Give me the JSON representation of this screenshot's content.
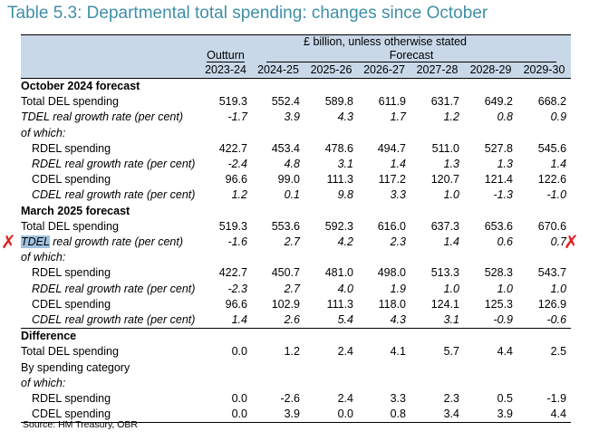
{
  "title": "Table 5.3: Departmental total spending: changes since October",
  "header": {
    "unit": "£ billion, unless otherwise stated",
    "outturn": "Outturn",
    "forecast": "Forecast",
    "years": [
      "2023-24",
      "2024-25",
      "2025-26",
      "2026-27",
      "2027-28",
      "2028-29",
      "2029-30"
    ]
  },
  "rows": [
    {
      "label": "October 2024 forecast",
      "style": "section",
      "values": []
    },
    {
      "label": "Total DEL spending",
      "style": "plain",
      "values": [
        "519.3",
        "552.4",
        "589.8",
        "611.9",
        "631.7",
        "649.2",
        "668.2"
      ]
    },
    {
      "label": "TDEL real growth rate (per cent)",
      "style": "italic",
      "values": [
        "-1.7",
        "3.9",
        "4.3",
        "1.7",
        "1.2",
        "0.8",
        "0.9"
      ]
    },
    {
      "label": "of which:",
      "style": "italic",
      "values": []
    },
    {
      "label": "RDEL spending",
      "style": "sub",
      "values": [
        "422.7",
        "453.4",
        "478.6",
        "494.7",
        "511.0",
        "527.8",
        "545.6"
      ]
    },
    {
      "label": "RDEL real growth rate (per cent)",
      "style": "subitalic",
      "values": [
        "-2.4",
        "4.8",
        "3.1",
        "1.4",
        "1.3",
        "1.3",
        "1.4"
      ]
    },
    {
      "label": "CDEL spending",
      "style": "sub",
      "values": [
        "96.6",
        "99.0",
        "111.3",
        "117.2",
        "120.7",
        "121.4",
        "122.6"
      ]
    },
    {
      "label": "CDEL real growth rate (per cent)",
      "style": "subitalic",
      "values": [
        "1.2",
        "0.1",
        "9.8",
        "3.3",
        "1.0",
        "-1.3",
        "-1.0"
      ]
    },
    {
      "label": "March 2025 forecast",
      "style": "section",
      "values": []
    },
    {
      "label": "Total DEL spending",
      "style": "plain",
      "values": [
        "519.3",
        "553.6",
        "592.3",
        "616.0",
        "637.3",
        "653.6",
        "670.6"
      ]
    },
    {
      "label_highlight": "TDEL",
      "label": " real growth rate (per cent)",
      "style": "italic",
      "values": [
        "-1.6",
        "2.7",
        "4.2",
        "2.3",
        "1.4",
        "0.6",
        "0.7"
      ]
    },
    {
      "label": "of which:",
      "style": "italic",
      "values": []
    },
    {
      "label": "RDEL spending",
      "style": "sub",
      "values": [
        "422.7",
        "450.7",
        "481.0",
        "498.0",
        "513.3",
        "528.3",
        "543.7"
      ]
    },
    {
      "label": "RDEL real growth rate (per cent)",
      "style": "subitalic",
      "values": [
        "-2.3",
        "2.7",
        "4.0",
        "1.9",
        "1.0",
        "1.0",
        "1.0"
      ]
    },
    {
      "label": "CDEL spending",
      "style": "sub",
      "values": [
        "96.6",
        "102.9",
        "111.3",
        "118.0",
        "124.1",
        "125.3",
        "126.9"
      ]
    },
    {
      "label": "CDEL real growth rate (per cent)",
      "style": "subitalic",
      "values": [
        "1.4",
        "2.6",
        "5.4",
        "4.3",
        "3.1",
        "-0.9",
        "-0.6"
      ]
    },
    {
      "label": "Difference",
      "style": "section",
      "values": []
    },
    {
      "label": "Total DEL spending",
      "style": "plain",
      "values": [
        "0.0",
        "1.2",
        "2.4",
        "4.1",
        "5.7",
        "4.4",
        "2.5"
      ]
    },
    {
      "label": "By spending category",
      "style": "plain",
      "values": []
    },
    {
      "label": "of which:",
      "style": "italic",
      "values": []
    },
    {
      "label": "RDEL spending",
      "style": "sub",
      "values": [
        "0.0",
        "-2.6",
        "2.4",
        "3.3",
        "2.3",
        "0.5",
        "-1.9"
      ]
    },
    {
      "label": "CDEL spending",
      "style": "sub",
      "values": [
        "0.0",
        "3.9",
        "0.0",
        "0.8",
        "3.4",
        "3.9",
        "4.4"
      ]
    }
  ],
  "source": "Source: HM Treasury, OBR",
  "annotations": {
    "mark_glyph": "✗",
    "mark_color": "#e0201e"
  }
}
